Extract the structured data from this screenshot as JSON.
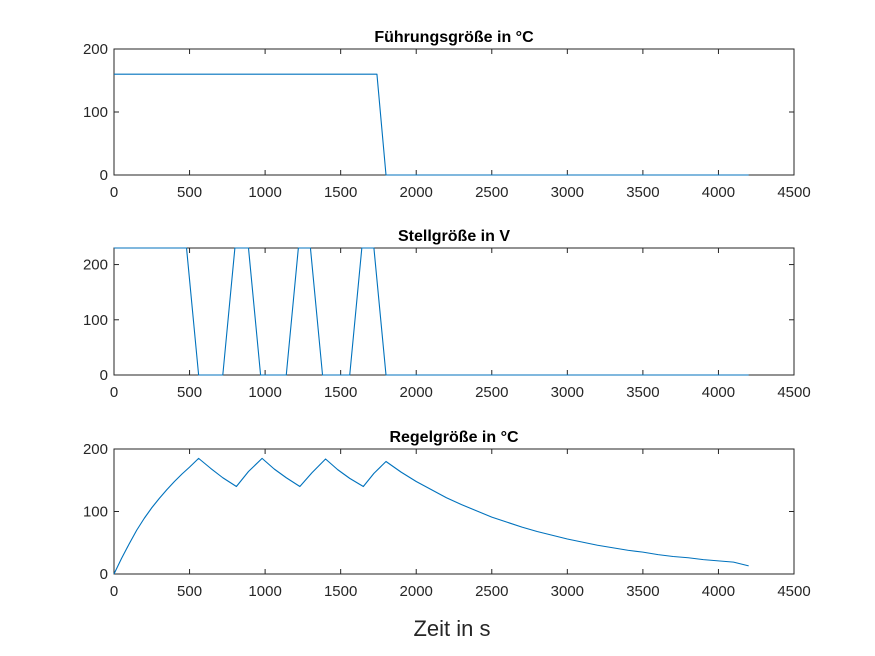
{
  "figure": {
    "xlabel": "Zeit in s"
  },
  "colors": {
    "line": "#0072BD",
    "axes": "#262626",
    "background": "#ffffff"
  },
  "chart_data": [
    {
      "type": "line",
      "title": "Führungsgröße in °C",
      "xlim": [
        0,
        4500
      ],
      "ylim": [
        0,
        200
      ],
      "xticks": [
        0,
        500,
        1000,
        1500,
        2000,
        2500,
        3000,
        3500,
        4000,
        4500
      ],
      "yticks": [
        0,
        100,
        200
      ],
      "grid": false,
      "series": [
        {
          "x": [
            0,
            1740,
            1800,
            4200
          ],
          "y": [
            160,
            160,
            0,
            0
          ]
        }
      ]
    },
    {
      "type": "line",
      "title": "Stellgröße in V",
      "xlim": [
        0,
        4500
      ],
      "ylim": [
        0,
        230
      ],
      "xticks": [
        0,
        500,
        1000,
        1500,
        2000,
        2500,
        3000,
        3500,
        4000,
        4500
      ],
      "yticks": [
        0,
        100,
        200
      ],
      "grid": false,
      "series": [
        {
          "x": [
            0,
            480,
            560,
            720,
            800,
            890,
            970,
            1140,
            1220,
            1300,
            1380,
            1560,
            1640,
            1720,
            1800,
            4200
          ],
          "y": [
            230,
            230,
            0,
            0,
            230,
            230,
            0,
            0,
            230,
            230,
            0,
            0,
            230,
            230,
            0,
            0
          ]
        }
      ]
    },
    {
      "type": "line",
      "title": "Regelgröße in °C",
      "xlim": [
        0,
        4500
      ],
      "ylim": [
        0,
        200
      ],
      "xticks": [
        0,
        500,
        1000,
        1500,
        2000,
        2500,
        3000,
        3500,
        4000,
        4500
      ],
      "yticks": [
        0,
        100,
        200
      ],
      "grid": false,
      "series": [
        {
          "x": [
            0,
            50,
            100,
            150,
            200,
            250,
            300,
            350,
            400,
            450,
            500,
            560,
            640,
            720,
            810,
            890,
            980,
            1060,
            1140,
            1230,
            1310,
            1400,
            1480,
            1560,
            1650,
            1720,
            1800,
            1900,
            2000,
            2100,
            2200,
            2300,
            2400,
            2500,
            2600,
            2700,
            2800,
            2900,
            3000,
            3100,
            3200,
            3300,
            3400,
            3500,
            3600,
            3700,
            3800,
            3900,
            4000,
            4100,
            4200
          ],
          "y": [
            0,
            25,
            48,
            70,
            89,
            106,
            121,
            135,
            148,
            160,
            171,
            185,
            169,
            154,
            140,
            164,
            185,
            168,
            154,
            140,
            162,
            184,
            167,
            153,
            140,
            161,
            180,
            163,
            148,
            135,
            122,
            111,
            101,
            91,
            83,
            75,
            68,
            62,
            56,
            51,
            46,
            42,
            38,
            35,
            31,
            28,
            26,
            23,
            21,
            19,
            13
          ]
        }
      ]
    }
  ]
}
